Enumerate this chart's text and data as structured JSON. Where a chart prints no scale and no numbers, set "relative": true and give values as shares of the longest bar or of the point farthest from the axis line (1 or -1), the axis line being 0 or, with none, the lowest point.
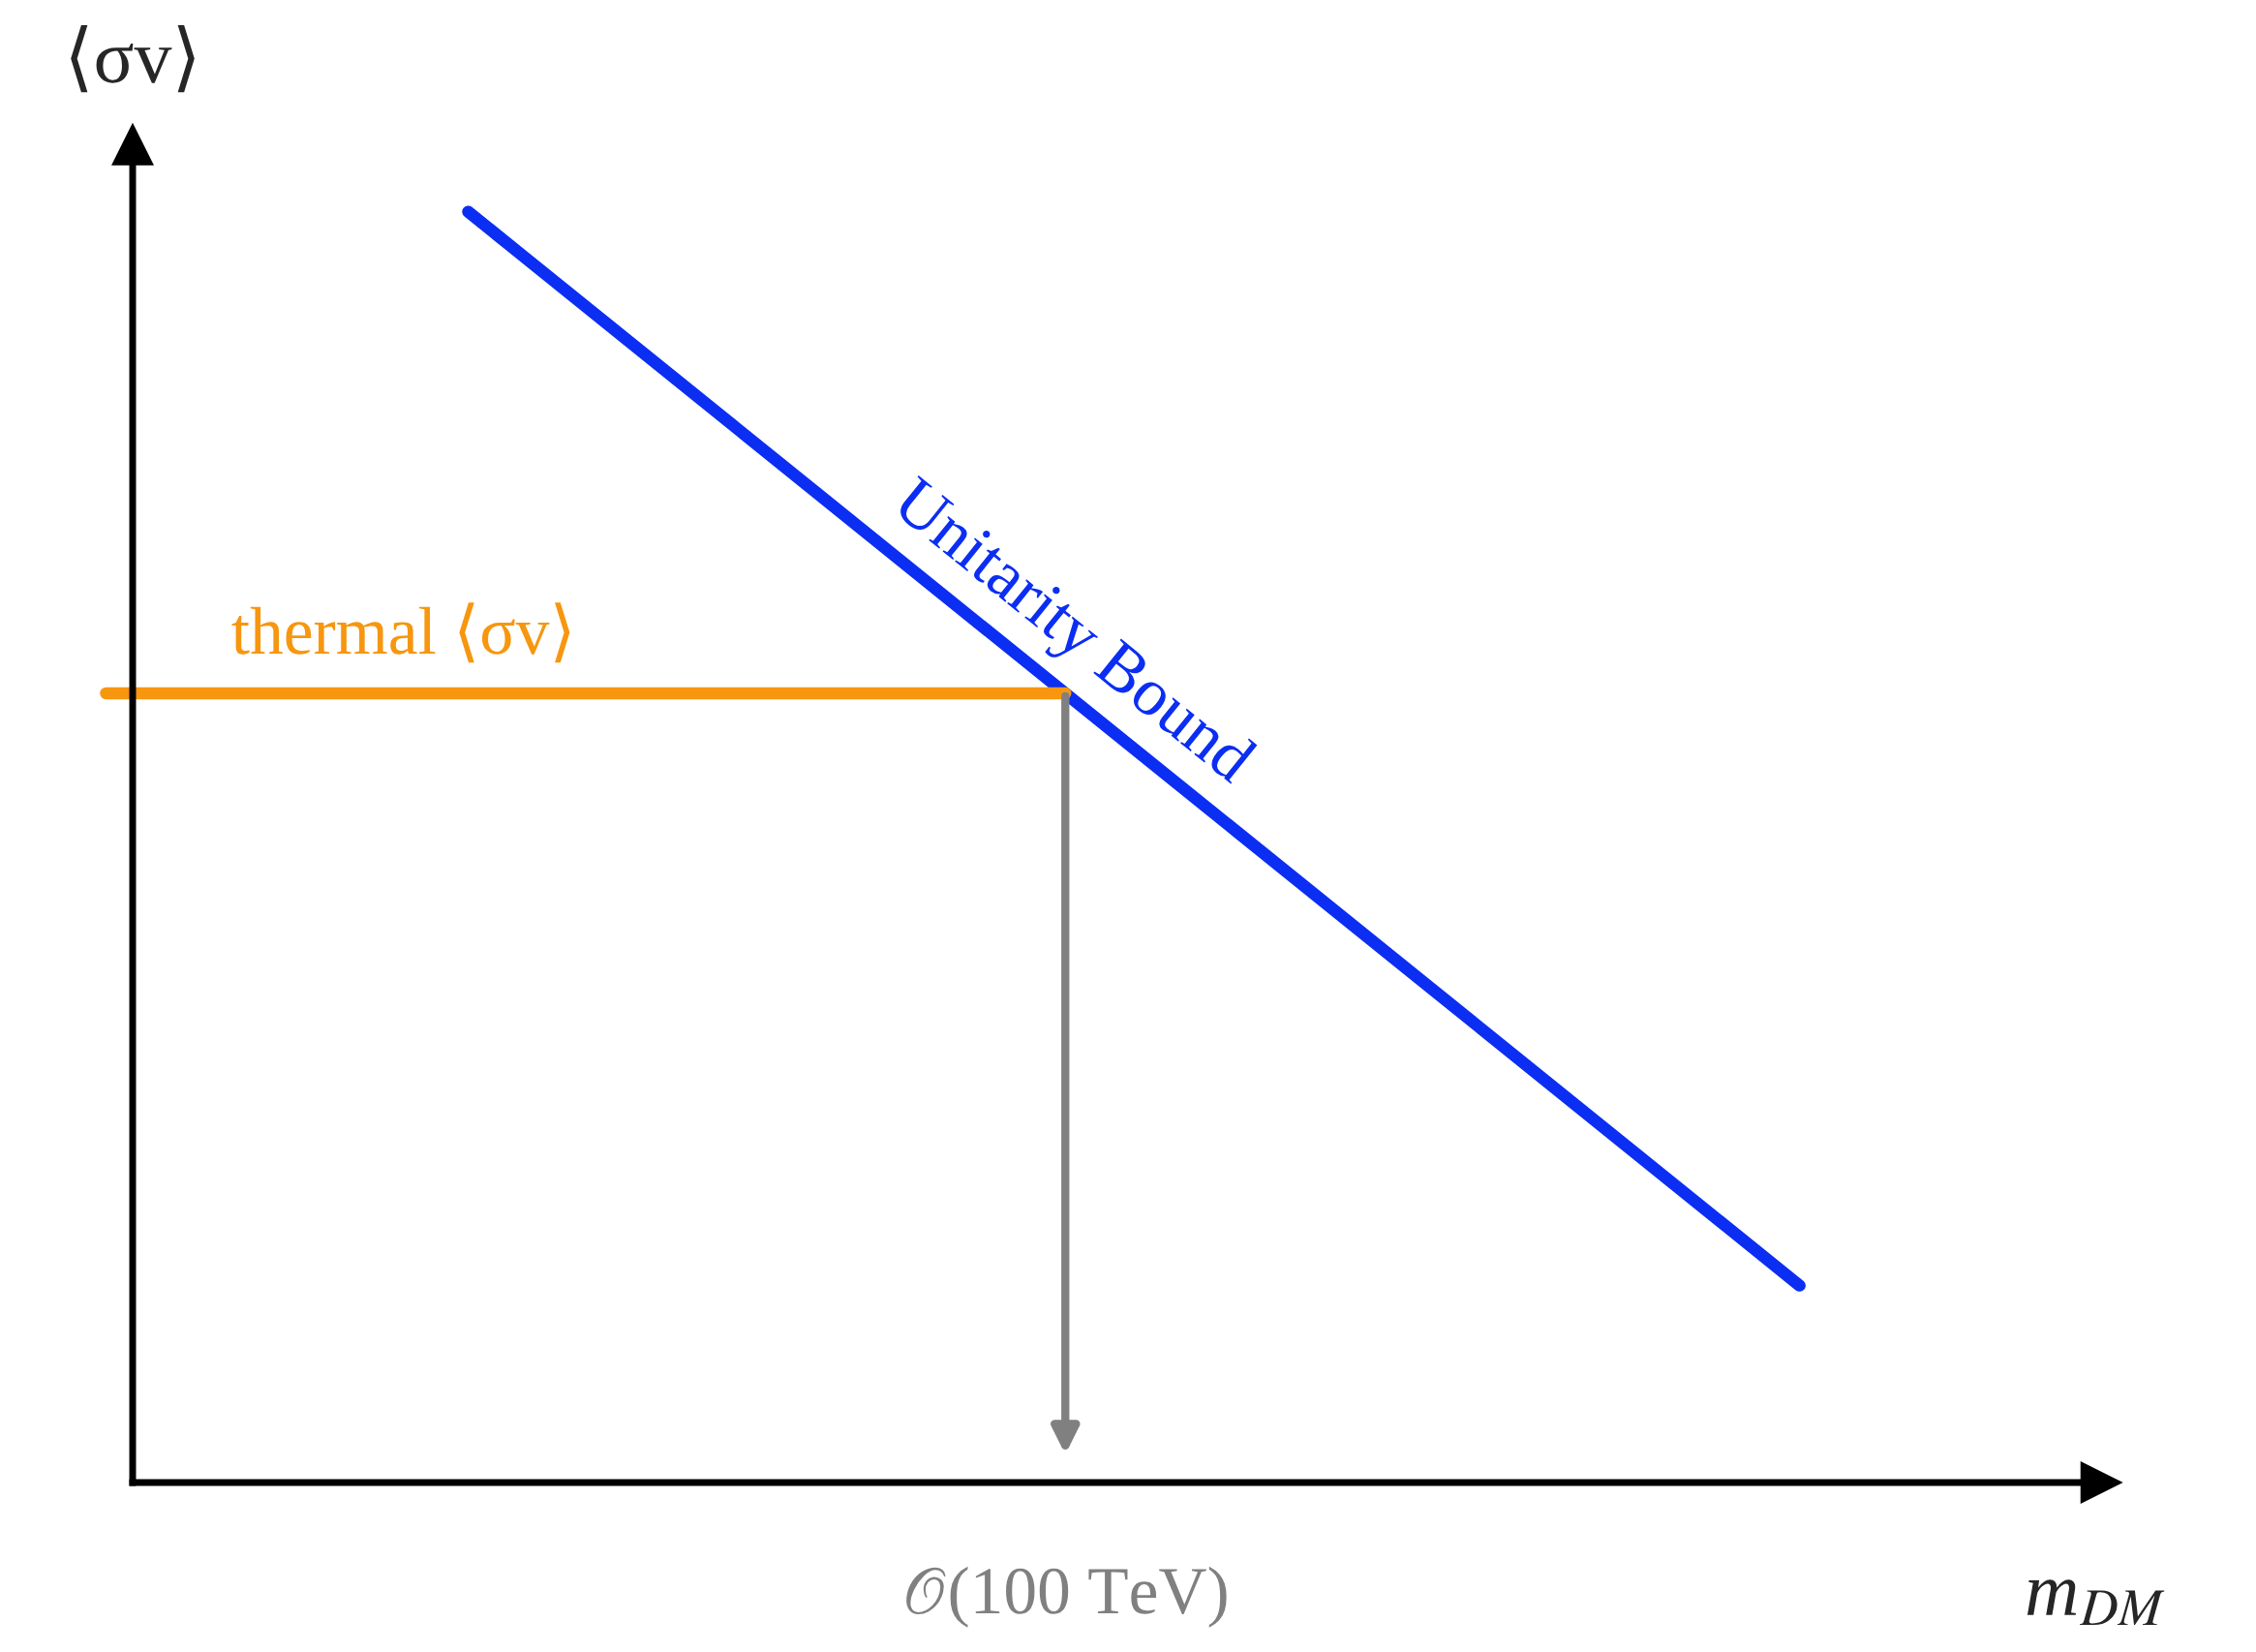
{
  "chart_data": {
    "type": "line",
    "relative": true,
    "ylabel": "⟨σv⟩",
    "xlabel": "m$_{DM}$",
    "categories": [
      null,
      null
    ],
    "series": [
      {
        "name": "Unitarity Bound",
        "color": "#0b2ef2",
        "values": [
          1,
          0.155
        ]
      }
    ],
    "ref_lines": [
      {
        "axis": "y",
        "value": 0.621,
        "label": "thermal ⟨σv⟩",
        "color": "#f7960f"
      }
    ],
    "annotations": [
      "𝒪(100 TeV)"
    ],
    "legend": false
  }
}
